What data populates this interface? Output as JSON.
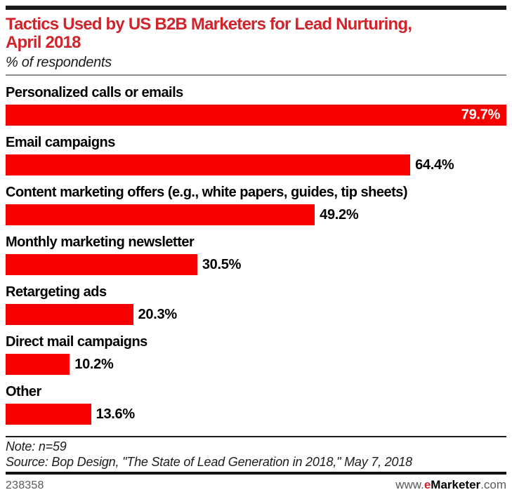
{
  "header": {
    "title_line1": "Tactics Used by US B2B Marketers for Lead Nurturing,",
    "title_line2": "April 2018",
    "subtitle": "% of respondents"
  },
  "chart_data": {
    "type": "bar",
    "orientation": "horizontal",
    "title": "Tactics Used by US B2B Marketers for Lead Nurturing, April 2018",
    "xlabel": "% of respondents",
    "xlim": [
      0,
      79.7
    ],
    "scale_max": 79.7,
    "grid": false,
    "legend": false,
    "categories": [
      "Personalized calls or emails",
      "Email campaigns",
      "Content marketing offers (e.g., white papers, guides, tip sheets)",
      "Monthly marketing newsletter",
      "Retargeting ads",
      "Direct mail campaigns",
      "Other"
    ],
    "values": [
      79.7,
      64.4,
      49.2,
      30.5,
      20.3,
      10.2,
      13.6
    ],
    "value_labels": [
      "79.7%",
      "64.4%",
      "49.2%",
      "30.5%",
      "20.3%",
      "10.2%",
      "13.6%"
    ],
    "label_inside": [
      true,
      false,
      false,
      false,
      false,
      false,
      false
    ]
  },
  "footer": {
    "note": "Note: n=59",
    "source": "Source: Bop Design, \"The State of Lead Generation in 2018,\" May 7, 2018",
    "chart_id": "238358",
    "brand_www": "www.",
    "brand_e": "e",
    "brand_name": "Marketer",
    "brand_com": ".com"
  },
  "colors": {
    "bar_red": "#f90000",
    "title_red": "#d2232a",
    "brand_red": "#d2232a",
    "value_label_inside": "#ffffff",
    "rule_gray": "#8c8c8c",
    "footer_gray": "#595959"
  }
}
